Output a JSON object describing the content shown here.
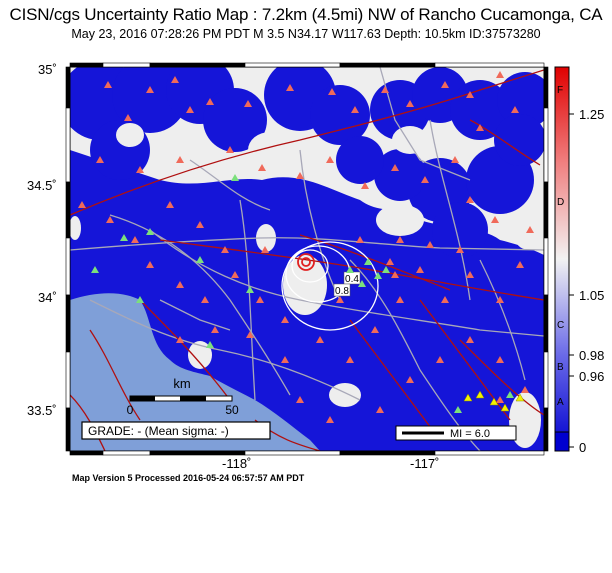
{
  "title": "CISN/cgs Uncertainty Ratio Map : 7.2km (4.5mi) NW of Rancho Cucamonga, CA",
  "subtitle": "May 23, 2016 07:28:26 PM PDT   M 3.5   N34.17 W117.63   Depth: 10.5km   ID:37573280",
  "footer": "Map Version 5 Processed 2016-05-24 06:57:57 AM PDT",
  "lat_labels": [
    "35˚",
    "34.5˚",
    "34˚",
    "33.5˚"
  ],
  "lon_labels": [
    "-118˚",
    "-117˚"
  ],
  "scale_bar": {
    "unit": "km",
    "start": "0",
    "end": "50"
  },
  "grade_box": "GRADE: - (Mean sigma: -)",
  "mi_legend": "MI = 6.0",
  "contour_labels": [
    "0.4",
    "0.8"
  ],
  "colorbar": {
    "values": [
      "1.25",
      "1.05",
      "0.98",
      "0.96",
      "0"
    ],
    "grades": [
      "F",
      "D",
      "C",
      "B",
      "A"
    ]
  },
  "colors": {
    "blue": "#1515d8",
    "land": "#eeeeee",
    "ocean": "#7f9fd8",
    "fault": "#b01010",
    "road": "#a8a8b8",
    "station_red": "#f06a5a",
    "station_green": "#7ce07c",
    "station_yellow": "#f2f200"
  }
}
